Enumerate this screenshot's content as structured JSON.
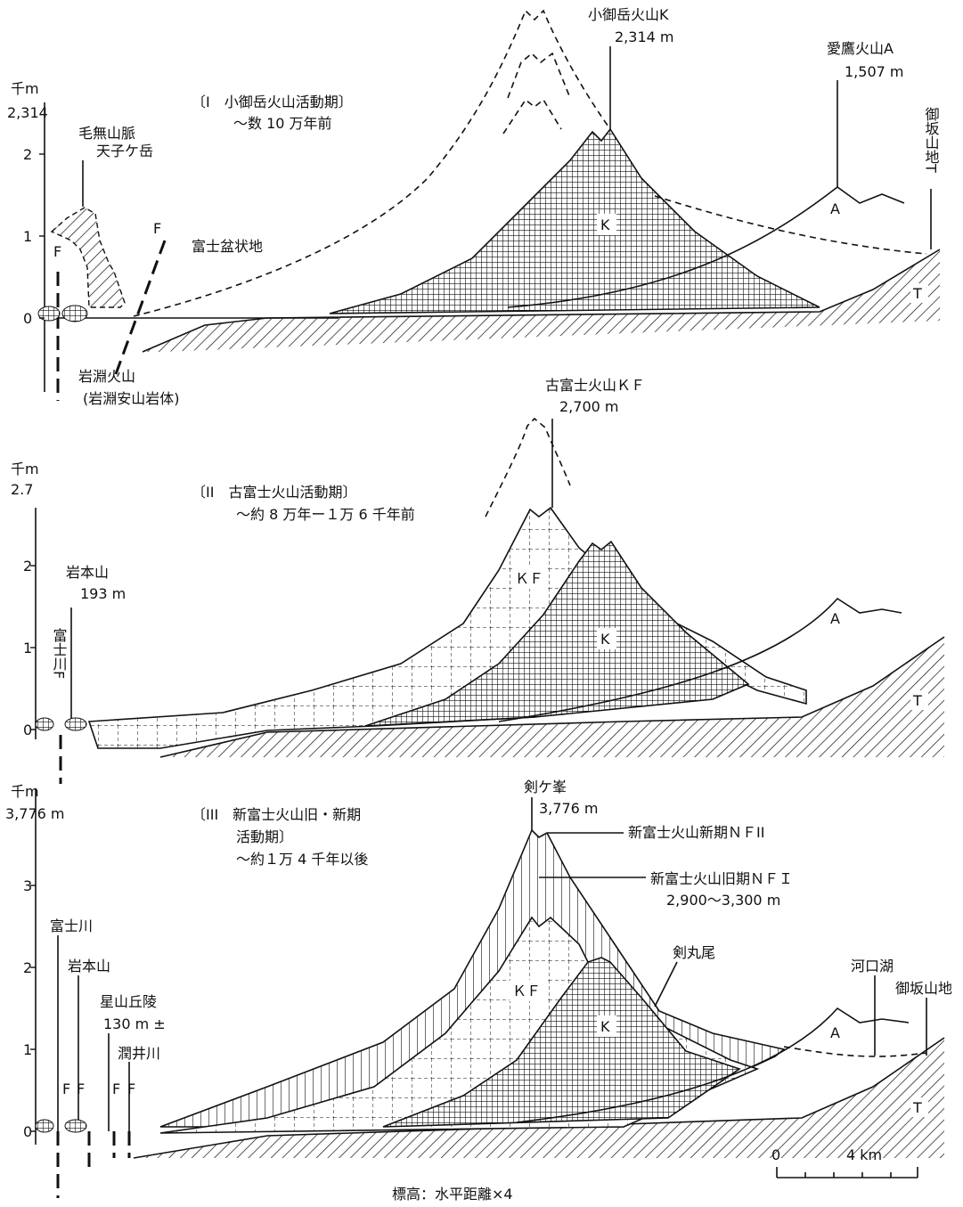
{
  "panels": [
    {
      "axis": {
        "unit": "千m",
        "top": "2,314",
        "ticks": [
          "0",
          "1",
          "2"
        ]
      },
      "period": "〔I　小御岳火山活動期〕",
      "age": "〜数 10 万年前",
      "texts": [
        "小御岳火山K",
        "2,314 m",
        "愛鷹火山A",
        "1,507 m",
        "毛無山脈",
        "天子ケ岳",
        "御坂山地T",
        "富士盆状地",
        "岩淵火山",
        "(岩淵安山岩体)",
        "F",
        "F",
        "K",
        "A",
        "T"
      ]
    },
    {
      "axis": {
        "unit": "千m",
        "top": "2.7",
        "ticks": [
          "0",
          "1",
          "2"
        ]
      },
      "period": "〔II　古富士火山活動期〕",
      "age": "〜約 8 万年ー１万 6 千年前",
      "texts": [
        "古富士火山ＫＦ",
        "2,700 m",
        "岩本山",
        "193 m",
        "富士川F",
        "ＫＦ",
        "K",
        "A",
        "T"
      ]
    },
    {
      "axis": {
        "unit": "千m",
        "top": "3,776 m",
        "ticks": [
          "0",
          "1",
          "2",
          "3"
        ]
      },
      "period": "〔III　新富士火山旧・新期",
      "period2": "活動期〕",
      "age": "〜約１万 4 千年以後",
      "texts": [
        "剣ケ峯",
        "3,776 m",
        "新富士火山新期ＮＦII",
        "新富士火山旧期ＮＦＩ",
        "2,900〜3,300 m",
        "富士川",
        "岩本山",
        "星山丘陵",
        "130 m ±",
        "潤井川",
        "F",
        "F",
        "F",
        "F",
        "ＫＦ",
        "K",
        "剣丸尾",
        "A",
        "河口湖",
        "御坂山地",
        "T"
      ]
    }
  ],
  "scale": {
    "start": "0",
    "end": "4 km"
  },
  "caption": "標高：水平距離×4"
}
